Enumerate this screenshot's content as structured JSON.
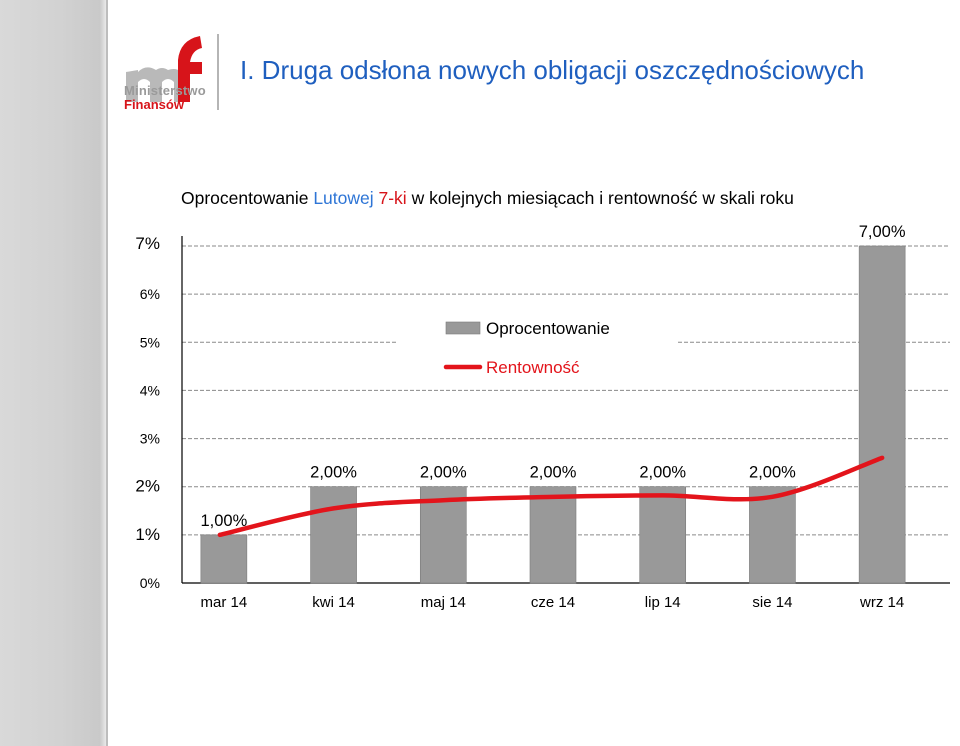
{
  "header": {
    "page_title": "I. Druga odsłona nowych obligacji oszczędnościowych",
    "logo_line1": "Ministerstwo",
    "logo_line2": "Finansów"
  },
  "chart_data": {
    "type": "bar",
    "title_parts": [
      "Oprocentowanie ",
      "Lutowej ",
      "7-ki",
      " w kolejnych miesiącach i rentowność w skali roku"
    ],
    "categories": [
      "mar 14",
      "kwi 14",
      "maj 14",
      "cze 14",
      "lip 14",
      "sie 14",
      "wrz 14"
    ],
    "series": [
      {
        "name": "Oprocentowanie",
        "kind": "bar",
        "color": "#999999",
        "values": [
          1.0,
          2.0,
          2.0,
          2.0,
          2.0,
          2.0,
          7.0
        ],
        "labels": [
          "1,00%",
          "2,00%",
          "2,00%",
          "2,00%",
          "2,00%",
          "2,00%",
          "7,00%"
        ]
      },
      {
        "name": "Rentowność",
        "kind": "line",
        "color": "#e3141b",
        "values": [
          1.0,
          1.55,
          1.72,
          1.79,
          1.82,
          1.79,
          2.6
        ]
      }
    ],
    "ylim": [
      0,
      7
    ],
    "y_ticks": [
      {
        "value": 0,
        "label": "0%"
      },
      {
        "value": 1,
        "label": "1%"
      },
      {
        "value": 2,
        "label": "2%"
      },
      {
        "value": 3,
        "label": "3%"
      },
      {
        "value": 4,
        "label": "4%"
      },
      {
        "value": 5,
        "label": "5%"
      },
      {
        "value": 6,
        "label": "6%"
      },
      {
        "value": 7,
        "label": "7%"
      }
    ],
    "grid": "dashed horizontal",
    "legend": "center"
  }
}
